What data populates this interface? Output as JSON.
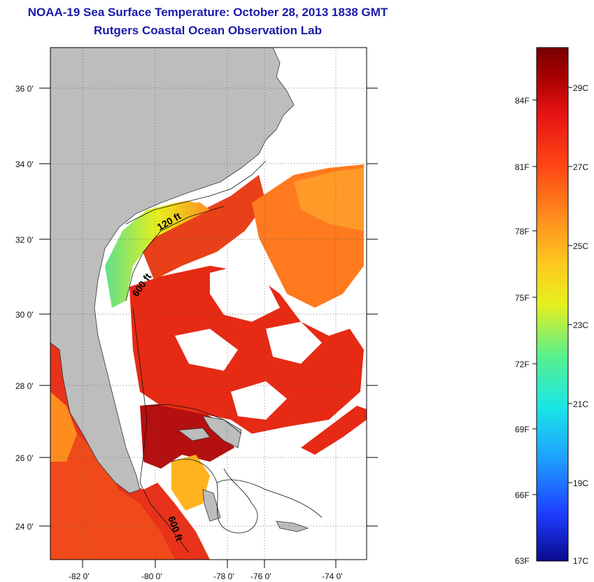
{
  "title_line1": "NOAA-19 Sea Surface Temperature:  October 28, 2013 1838 GMT",
  "title_line2": "Rutgers Coastal Ocean Observation Lab",
  "latitude_labels": [
    "36 0'",
    "34 0'",
    "32 0'",
    "30 0'",
    "28 0'",
    "26 0'",
    "24 0'"
  ],
  "longitude_labels": [
    "-82 0'",
    "-80 0'",
    "-78 0'",
    "-76 0'",
    "-74 0'"
  ],
  "contour_labels": [
    "120 ft",
    "600 ft",
    "600 ft"
  ],
  "colorbar": {
    "fahrenheit": [
      "84F",
      "81F",
      "78F",
      "75F",
      "72F",
      "69F",
      "66F",
      "63F"
    ],
    "celsius": [
      "29C",
      "27C",
      "25C",
      "23C",
      "21C",
      "19C",
      "17C"
    ],
    "colors": [
      "#0a0a8c",
      "#1e3cff",
      "#1ea0ff",
      "#19e6e6",
      "#5af08c",
      "#e6f01e",
      "#ffc81e",
      "#ff8c1e",
      "#ff4614",
      "#e61414",
      "#aa0000",
      "#780000"
    ]
  },
  "land_color": "#bdbdbd"
}
